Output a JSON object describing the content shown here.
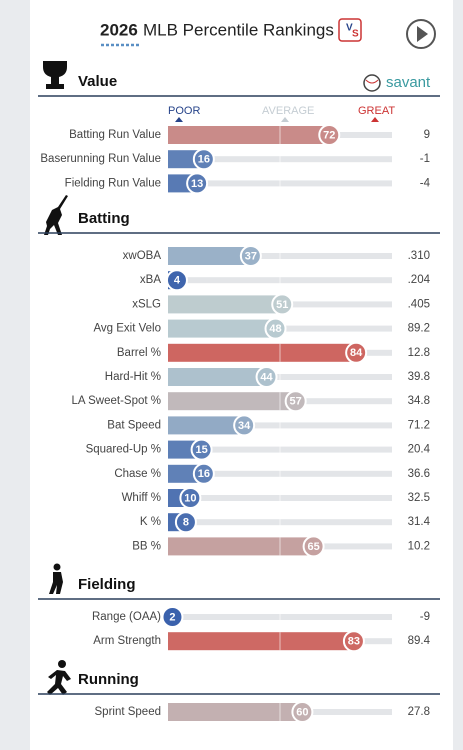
{
  "header": {
    "year": "2026",
    "title": "MLB Percentile Rankings",
    "brand": "savant"
  },
  "chart_data": {
    "type": "percentile-bars",
    "xlim": [
      0,
      100
    ],
    "legend": {
      "poor": "POOR",
      "average": "AVERAGE",
      "great": "GREAT"
    },
    "sections": [
      {
        "title": "Value",
        "rows": [
          {
            "metric": "Batting Run Value",
            "percentile": 72,
            "stat": "9"
          },
          {
            "metric": "Baserunning Run Value",
            "percentile": 16,
            "stat": "-1"
          },
          {
            "metric": "Fielding Run Value",
            "percentile": 13,
            "stat": "-4"
          }
        ]
      },
      {
        "title": "Batting",
        "rows": [
          {
            "metric": "xwOBA",
            "percentile": 37,
            "stat": ".310"
          },
          {
            "metric": "xBA",
            "percentile": 4,
            "stat": ".204"
          },
          {
            "metric": "xSLG",
            "percentile": 51,
            "stat": ".405"
          },
          {
            "metric": "Avg Exit Velo",
            "percentile": 48,
            "stat": "89.2"
          },
          {
            "metric": "Barrel %",
            "percentile": 84,
            "stat": "12.8"
          },
          {
            "metric": "Hard-Hit %",
            "percentile": 44,
            "stat": "39.8"
          },
          {
            "metric": "LA Sweet-Spot %",
            "percentile": 57,
            "stat": "34.8"
          },
          {
            "metric": "Bat Speed",
            "percentile": 34,
            "stat": "71.2"
          },
          {
            "metric": "Squared-Up %",
            "percentile": 15,
            "stat": "20.4"
          },
          {
            "metric": "Chase %",
            "percentile": 16,
            "stat": "36.6"
          },
          {
            "metric": "Whiff %",
            "percentile": 10,
            "stat": "32.5"
          },
          {
            "metric": "K %",
            "percentile": 8,
            "stat": "31.4"
          },
          {
            "metric": "BB %",
            "percentile": 65,
            "stat": "10.2"
          }
        ]
      },
      {
        "title": "Fielding",
        "rows": [
          {
            "metric": "Range (OAA)",
            "percentile": 2,
            "stat": "-9"
          },
          {
            "metric": "Arm Strength",
            "percentile": 83,
            "stat": "89.4"
          }
        ]
      },
      {
        "title": "Running",
        "rows": [
          {
            "metric": "Sprint Speed",
            "percentile": 60,
            "stat": "27.8"
          }
        ]
      }
    ]
  }
}
